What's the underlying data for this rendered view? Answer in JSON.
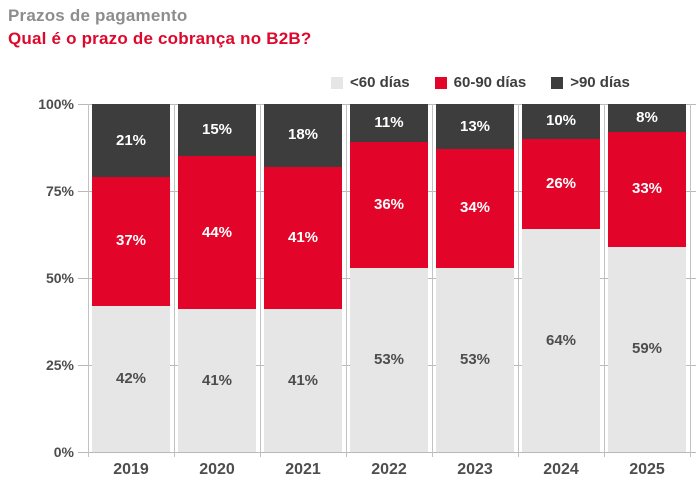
{
  "header": {
    "supertitle": "Prazos de pagamento",
    "title": "Qual é o prazo de cobrança no B2B?"
  },
  "colors": {
    "red": "#e30529",
    "dark_gray": "#3e3d3d",
    "light_gray": "#e6e6e6",
    "grid": "#b9b9b9",
    "axis_text": "#4d4d4d",
    "supertitle_text": "#8d8d8d",
    "title_text": "#dd082c"
  },
  "legend": {
    "items": [
      {
        "label": "<60 días",
        "color_key": "light_gray"
      },
      {
        "label": "60-90 días",
        "color_key": "red"
      },
      {
        "label": ">90 días",
        "color_key": "dark_gray"
      }
    ]
  },
  "chart_data": {
    "type": "bar",
    "variant": "stacked-100-percent",
    "title": "Qual é o prazo de cobrança no B2B?",
    "subtitle": "Prazos de pagamento",
    "categories": [
      "2019",
      "2020",
      "2021",
      "2022",
      "2023",
      "2024",
      "2025"
    ],
    "series": [
      {
        "name": "<60 días",
        "color_key": "light_gray",
        "label_color": "#4d4d4d",
        "values": [
          42,
          41,
          41,
          53,
          53,
          64,
          59
        ]
      },
      {
        "name": "60-90 días",
        "color_key": "red",
        "label_color": "#ffffff",
        "values": [
          37,
          44,
          41,
          36,
          34,
          26,
          33
        ]
      },
      {
        "name": ">90 días",
        "color_key": "dark_gray",
        "label_color": "#ffffff",
        "values": [
          21,
          15,
          18,
          11,
          13,
          10,
          8
        ]
      }
    ],
    "value_suffix": "%",
    "xlabel": "",
    "ylabel": "",
    "y_axis": {
      "min": 0,
      "max": 100,
      "ticks": [
        0,
        25,
        50,
        75,
        100
      ],
      "tick_suffix": "%"
    },
    "grid": true,
    "legend_position": "top-right"
  }
}
